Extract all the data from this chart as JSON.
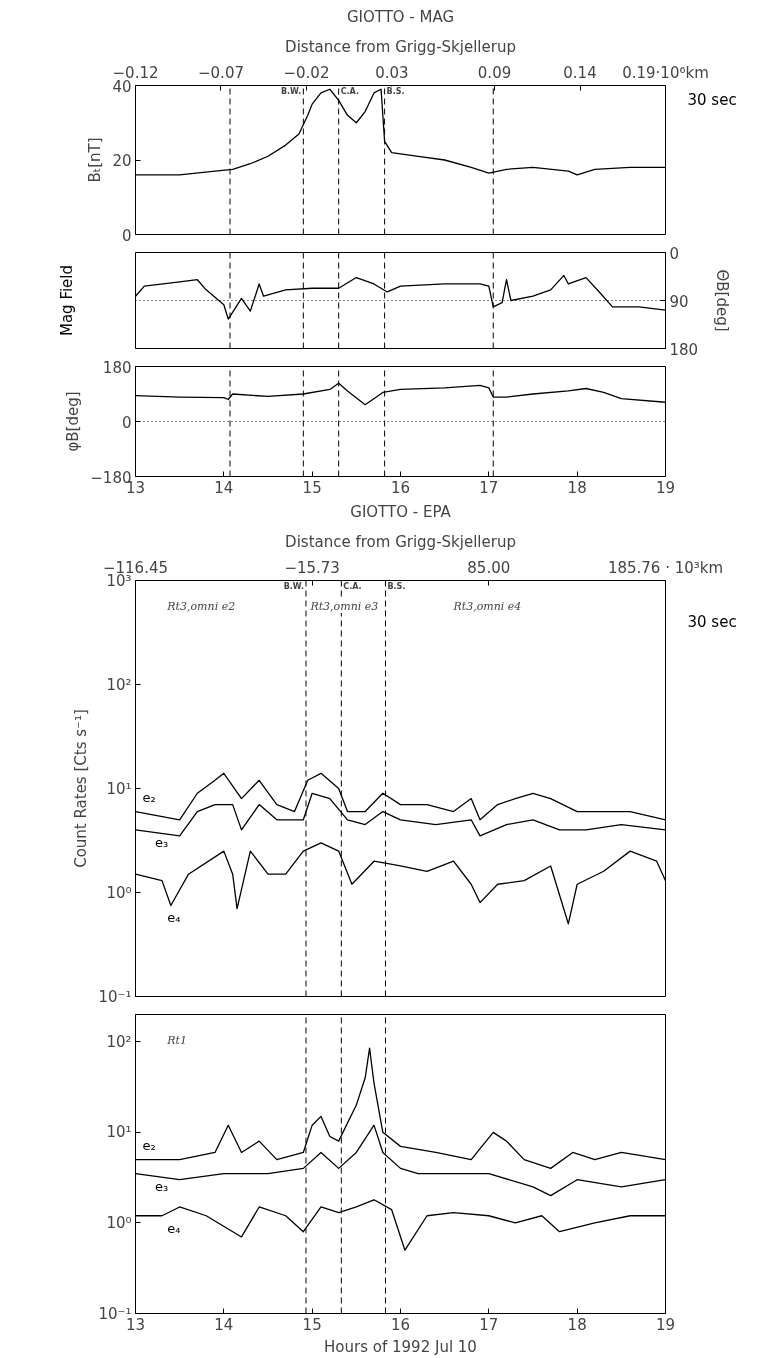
{
  "chart_data": [
    {
      "type": "line",
      "title": "GIOTTO - MAG",
      "subtitle": "Distance from Grigg-Skjellerup",
      "ylabel": "Bₜ[nT]",
      "xlim": [
        13,
        19
      ],
      "xticks": [
        13,
        14,
        15,
        16,
        17,
        18,
        19
      ],
      "ylim": [
        0,
        40
      ],
      "yticks": [
        0,
        20,
        40
      ],
      "x2lim": [
        -0.12,
        0.19
      ],
      "x2ticks": [
        -0.12,
        -0.07,
        -0.02,
        0.03,
        0.09,
        0.14,
        {
          "value": 0.19,
          "label": "0.19·10⁶km"
        }
      ],
      "tick_labels": "y",
      "annotations": [
        "30 sec"
      ],
      "ref_lines": [
        {
          "axis": "x",
          "value": 14.07,
          "line_style": "dashed"
        },
        {
          "axis": "x",
          "value": 14.9,
          "label": "B.W.",
          "line_style": "dashed"
        },
        {
          "axis": "x",
          "value": 15.3,
          "label": "C.A.",
          "line_style": "dashed"
        },
        {
          "axis": "x",
          "value": 15.82,
          "label": "B.S.",
          "line_style": "dashed"
        },
        {
          "axis": "x",
          "value": 17.05,
          "line_style": "dashed"
        }
      ],
      "series": [
        {
          "color": "#000000",
          "x": [
            13.0,
            13.5,
            13.9,
            14.1,
            14.3,
            14.5,
            14.7,
            14.85,
            14.95,
            15.0,
            15.1,
            15.2,
            15.3,
            15.4,
            15.5,
            15.6,
            15.7,
            15.78,
            15.82,
            15.9,
            16.2,
            16.5,
            16.8,
            17.0,
            17.2,
            17.5,
            17.9,
            18.0,
            18.2,
            18.6,
            19.0
          ],
          "values": [
            16,
            16,
            17,
            17.5,
            19,
            21,
            24,
            27,
            32,
            35,
            38,
            39,
            36,
            32,
            30,
            33,
            38,
            39,
            25,
            22,
            21,
            20,
            18,
            16.5,
            17.5,
            18,
            17,
            16,
            17.5,
            18,
            18
          ]
        }
      ]
    },
    {
      "type": "line",
      "ylabel": "ΘB[deg]",
      "annotations": [
        "Mag Field"
      ],
      "xlim": [
        13,
        19
      ],
      "xticks": [
        13,
        14,
        15,
        16,
        17,
        18,
        19
      ],
      "ylim": [
        180,
        0
      ],
      "yticks": [
        0,
        90,
        180
      ],
      "tick_labels": "y",
      "ref_lines": [
        {
          "axis": "y",
          "value": 90,
          "line_style": "dotted"
        },
        {
          "axis": "x",
          "value": 14.07,
          "line_style": "dashed"
        },
        {
          "axis": "x",
          "value": 14.9,
          "line_style": "dashed"
        },
        {
          "axis": "x",
          "value": 15.3,
          "line_style": "dashed"
        },
        {
          "axis": "x",
          "value": 15.82,
          "line_style": "dashed"
        },
        {
          "axis": "x",
          "value": 17.05,
          "line_style": "dashed"
        }
      ],
      "series": [
        {
          "color": "#000000",
          "x": [
            13.0,
            13.1,
            13.5,
            13.7,
            13.8,
            14.0,
            14.05,
            14.2,
            14.3,
            14.4,
            14.45,
            14.7,
            15.0,
            15.3,
            15.5,
            15.7,
            15.85,
            16.0,
            16.5,
            16.9,
            17.0,
            17.05,
            17.15,
            17.2,
            17.25,
            17.5,
            17.7,
            17.85,
            17.9,
            18.1,
            18.25,
            18.4,
            18.7,
            19.0
          ],
          "values": [
            82,
            63,
            55,
            51,
            70,
            98,
            125,
            86,
            110,
            59,
            82,
            70,
            67,
            67,
            47,
            59,
            74,
            63,
            59,
            59,
            63,
            102,
            94,
            51,
            90,
            82,
            70,
            43,
            59,
            47,
            74,
            102,
            102,
            108
          ]
        }
      ]
    },
    {
      "type": "line",
      "ylabel": "φB[deg]",
      "xlim": [
        13,
        19
      ],
      "xticks": [
        13,
        14,
        15,
        16,
        17,
        18,
        19
      ],
      "ylim": [
        -180,
        180
      ],
      "yticks": [
        -180,
        0,
        180
      ],
      "ref_lines": [
        {
          "axis": "y",
          "value": 0,
          "line_style": "dotted"
        },
        {
          "axis": "x",
          "value": 14.07,
          "line_style": "dashed"
        },
        {
          "axis": "x",
          "value": 14.9,
          "line_style": "dashed"
        },
        {
          "axis": "x",
          "value": 15.3,
          "line_style": "dashed"
        },
        {
          "axis": "x",
          "value": 15.82,
          "line_style": "dashed"
        },
        {
          "axis": "x",
          "value": 17.05,
          "line_style": "dashed"
        }
      ],
      "series": [
        {
          "color": "#000000",
          "x": [
            13.0,
            13.5,
            14.0,
            14.05,
            14.1,
            14.5,
            14.9,
            15.2,
            15.3,
            15.4,
            15.6,
            15.8,
            16.0,
            16.5,
            16.9,
            17.0,
            17.05,
            17.2,
            17.5,
            17.9,
            18.1,
            18.3,
            18.5,
            19.0
          ],
          "values": [
            85,
            80,
            78,
            72,
            90,
            82,
            90,
            105,
            125,
            100,
            55,
            95,
            105,
            110,
            118,
            110,
            80,
            80,
            90,
            100,
            108,
            95,
            75,
            63
          ]
        }
      ]
    },
    {
      "type": "line",
      "title": "GIOTTO - EPA",
      "subtitle": "Distance from Grigg-Skjellerup",
      "ylabel": "Count Rates [Cts s⁻¹]",
      "log": true,
      "xlim": [
        13,
        19
      ],
      "xticks": [
        13,
        14,
        15,
        16,
        17,
        18,
        19
      ],
      "ylim": [
        0.1,
        1000
      ],
      "yticks": [
        {
          "value": 0.1,
          "label": "10⁻¹"
        },
        {
          "value": 1,
          "label": "10⁰"
        },
        {
          "value": 10,
          "label": "10¹"
        },
        {
          "value": 100,
          "label": "10²"
        },
        {
          "value": 1000,
          "label": "10³"
        }
      ],
      "x2lim": [
        -116.45,
        185.76
      ],
      "x2ticks": [
        -116.45,
        -15.73,
        {
          "value": 85.0,
          "label": "85.00"
        },
        {
          "value": 185.76,
          "label": "185.76 · 10³km"
        }
      ],
      "tick_labels": "y",
      "annotations": [
        "30 sec",
        "Rt3,omni e2",
        "Rt3,omni e3",
        "Rt3,omni e4"
      ],
      "ref_lines": [
        {
          "axis": "x",
          "value": 14.93,
          "label": "B.W.",
          "line_style": "dashed"
        },
        {
          "axis": "x",
          "value": 15.33,
          "label": "C.A.",
          "line_style": "dashed"
        },
        {
          "axis": "x",
          "value": 15.83,
          "label": "B.S.",
          "line_style": "dashed"
        }
      ],
      "series": [
        {
          "name": "e₂",
          "color": "#000000",
          "x": [
            13.0,
            13.5,
            13.7,
            13.9,
            14.0,
            14.2,
            14.4,
            14.6,
            14.8,
            14.95,
            15.1,
            15.3,
            15.4,
            15.6,
            15.8,
            16.0,
            16.3,
            16.6,
            16.8,
            16.9,
            17.1,
            17.3,
            17.5,
            17.7,
            18.0,
            18.3,
            18.6,
            19.0
          ],
          "values": [
            6,
            5,
            9,
            12,
            14,
            8,
            12,
            7,
            6,
            12,
            14,
            10,
            6,
            6,
            9,
            7,
            7,
            6,
            8,
            5,
            7,
            8,
            9,
            8,
            6,
            6,
            6,
            5
          ]
        },
        {
          "name": "e₃",
          "color": "#000000",
          "x": [
            13.0,
            13.5,
            13.7,
            13.9,
            14.1,
            14.2,
            14.4,
            14.6,
            14.9,
            15.0,
            15.2,
            15.4,
            15.6,
            15.8,
            16.0,
            16.4,
            16.8,
            16.9,
            17.2,
            17.5,
            17.8,
            18.1,
            18.5,
            19.0
          ],
          "values": [
            4,
            3.5,
            6,
            7,
            7,
            4,
            7,
            5,
            5,
            9,
            8,
            5,
            4.5,
            6,
            5,
            4.5,
            5,
            3.5,
            4.5,
            5,
            4,
            4,
            4.5,
            4
          ]
        },
        {
          "name": "e₄",
          "color": "#000000",
          "x": [
            13.0,
            13.3,
            13.4,
            13.6,
            14.0,
            14.1,
            14.15,
            14.3,
            14.5,
            14.7,
            14.9,
            15.1,
            15.3,
            15.45,
            15.7,
            16.0,
            16.3,
            16.6,
            16.8,
            16.9,
            17.1,
            17.4,
            17.7,
            17.9,
            18.0,
            18.3,
            18.6,
            18.9,
            19.0
          ],
          "values": [
            1.5,
            1.3,
            0.75,
            1.5,
            2.5,
            1.5,
            0.7,
            2.5,
            1.5,
            1.5,
            2.5,
            3,
            2.5,
            1.2,
            2,
            1.8,
            1.6,
            2,
            1.2,
            0.8,
            1.2,
            1.3,
            1.8,
            0.5,
            1.2,
            1.6,
            2.5,
            2,
            1.3
          ]
        }
      ]
    },
    {
      "type": "line",
      "xlabel": "Hours of 1992 Jul 10",
      "log": true,
      "xlim": [
        13,
        19
      ],
      "xticks": [
        13,
        14,
        15,
        16,
        17,
        18,
        19
      ],
      "ylim": [
        0.1,
        200
      ],
      "yticks": [
        {
          "value": 0.1,
          "label": "10⁻¹"
        },
        {
          "value": 1,
          "label": "10⁰"
        },
        {
          "value": 10,
          "label": "10¹"
        },
        {
          "value": 100,
          "label": "10²"
        }
      ],
      "annotations": [
        "Rt1"
      ],
      "ref_lines": [
        {
          "axis": "x",
          "value": 14.93,
          "line_style": "dashed"
        },
        {
          "axis": "x",
          "value": 15.33,
          "line_style": "dashed"
        },
        {
          "axis": "x",
          "value": 15.83,
          "line_style": "dashed"
        }
      ],
      "series": [
        {
          "name": "e₂",
          "color": "#000000",
          "x": [
            13.0,
            13.5,
            13.9,
            14.05,
            14.2,
            14.4,
            14.6,
            14.9,
            15.0,
            15.1,
            15.2,
            15.3,
            15.5,
            15.6,
            15.65,
            15.7,
            15.8,
            16.0,
            16.4,
            16.8,
            17.05,
            17.2,
            17.4,
            17.7,
            17.95,
            18.2,
            18.5,
            19.0
          ],
          "values": [
            5,
            5,
            6,
            12,
            6,
            8,
            5,
            6,
            12,
            15,
            9,
            8,
            20,
            40,
            85,
            35,
            10,
            7,
            6,
            5,
            10,
            8,
            5,
            4,
            6,
            5,
            6,
            5
          ]
        },
        {
          "name": "e₃",
          "color": "#000000",
          "x": [
            13.0,
            13.5,
            14.0,
            14.5,
            14.9,
            15.1,
            15.3,
            15.5,
            15.7,
            15.8,
            16.0,
            16.2,
            16.6,
            17.0,
            17.5,
            17.7,
            18.0,
            18.5,
            19.0
          ],
          "values": [
            3.5,
            3,
            3.5,
            3.5,
            4,
            6,
            4,
            6,
            12,
            6,
            4,
            3.5,
            3.5,
            3.5,
            2.5,
            2,
            3,
            2.5,
            3
          ]
        },
        {
          "name": "e₄",
          "color": "#000000",
          "x": [
            13.0,
            13.3,
            13.5,
            13.8,
            14.2,
            14.4,
            14.7,
            14.9,
            15.1,
            15.3,
            15.5,
            15.7,
            15.9,
            16.05,
            16.3,
            16.6,
            17.0,
            17.3,
            17.6,
            17.8,
            18.2,
            18.6,
            19.0
          ],
          "values": [
            1.2,
            1.2,
            1.5,
            1.2,
            0.7,
            1.5,
            1.2,
            0.8,
            1.5,
            1.3,
            1.5,
            1.8,
            1.4,
            0.5,
            1.2,
            1.3,
            1.2,
            1.0,
            1.2,
            0.8,
            1.0,
            1.2,
            1.2
          ]
        }
      ]
    }
  ]
}
